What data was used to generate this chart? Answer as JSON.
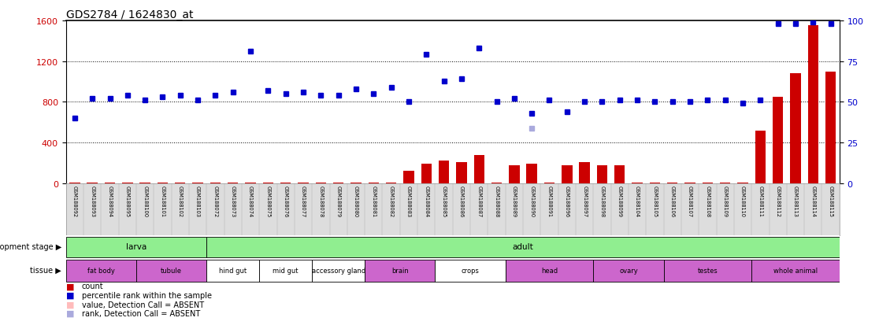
{
  "title": "GDS2784 / 1624830_at",
  "samples": [
    "GSM188092",
    "GSM188093",
    "GSM188094",
    "GSM188095",
    "GSM188100",
    "GSM188101",
    "GSM188102",
    "GSM188103",
    "GSM188072",
    "GSM188073",
    "GSM188074",
    "GSM188075",
    "GSM188076",
    "GSM188077",
    "GSM188078",
    "GSM188079",
    "GSM188080",
    "GSM188081",
    "GSM188082",
    "GSM188083",
    "GSM188084",
    "GSM188085",
    "GSM188086",
    "GSM188087",
    "GSM188088",
    "GSM188089",
    "GSM188090",
    "GSM188091",
    "GSM188096",
    "GSM188097",
    "GSM188098",
    "GSM188099",
    "GSM188104",
    "GSM188105",
    "GSM188106",
    "GSM188107",
    "GSM188108",
    "GSM188109",
    "GSM188110",
    "GSM188111",
    "GSM188112",
    "GSM188113",
    "GSM188114",
    "GSM188115"
  ],
  "counts": [
    5,
    5,
    5,
    5,
    5,
    5,
    5,
    5,
    5,
    5,
    5,
    5,
    5,
    5,
    5,
    5,
    5,
    5,
    5,
    120,
    195,
    220,
    205,
    280,
    5,
    175,
    195,
    5,
    175,
    205,
    175,
    180,
    5,
    5,
    5,
    5,
    5,
    5,
    5,
    520,
    850,
    1080,
    1550,
    1100
  ],
  "ranks_pct": [
    40,
    52,
    52,
    54,
    51,
    53,
    54,
    51,
    54,
    56,
    81,
    57,
    55,
    56,
    54,
    54,
    58,
    55,
    59,
    50,
    79,
    63,
    64,
    83,
    50,
    52,
    43,
    51,
    44,
    50,
    50,
    51,
    51,
    50,
    50,
    50,
    51,
    51,
    49,
    51,
    98,
    98,
    99,
    98
  ],
  "absent_rank_idx": 26,
  "absent_rank_pct": 34,
  "left_ylim": [
    0,
    1600
  ],
  "right_ylim": [
    0,
    100
  ],
  "left_yticks": [
    0,
    400,
    800,
    1200,
    1600
  ],
  "right_yticks": [
    0,
    25,
    50,
    75,
    100
  ],
  "left_color": "#CC0000",
  "right_color": "#0000CC",
  "bar_color": "#CC0000",
  "dot_color": "#0000CC",
  "absent_dot_color": "#AAAADD",
  "grid_color": "#000000",
  "bg_color": "#FFFFFF",
  "dev_groups": [
    {
      "label": "larva",
      "start": 0,
      "end": 8
    },
    {
      "label": "adult",
      "start": 8,
      "end": 44
    }
  ],
  "dev_color": "#90EE90",
  "tissue_groups": [
    {
      "label": "fat body",
      "start": 0,
      "end": 4,
      "purple": true
    },
    {
      "label": "tubule",
      "start": 4,
      "end": 8,
      "purple": true
    },
    {
      "label": "hind gut",
      "start": 8,
      "end": 11,
      "purple": false
    },
    {
      "label": "mid gut",
      "start": 11,
      "end": 14,
      "purple": false
    },
    {
      "label": "accessory gland",
      "start": 14,
      "end": 17,
      "purple": false
    },
    {
      "label": "brain",
      "start": 17,
      "end": 21,
      "purple": true
    },
    {
      "label": "crops",
      "start": 21,
      "end": 25,
      "purple": false
    },
    {
      "label": "head",
      "start": 25,
      "end": 30,
      "purple": true
    },
    {
      "label": "ovary",
      "start": 30,
      "end": 34,
      "purple": true
    },
    {
      "label": "testes",
      "start": 34,
      "end": 39,
      "purple": true
    },
    {
      "label": "whole animal",
      "start": 39,
      "end": 44,
      "purple": true
    }
  ],
  "tissue_purple_color": "#CC66CC",
  "tissue_white_color": "#FFFFFF"
}
